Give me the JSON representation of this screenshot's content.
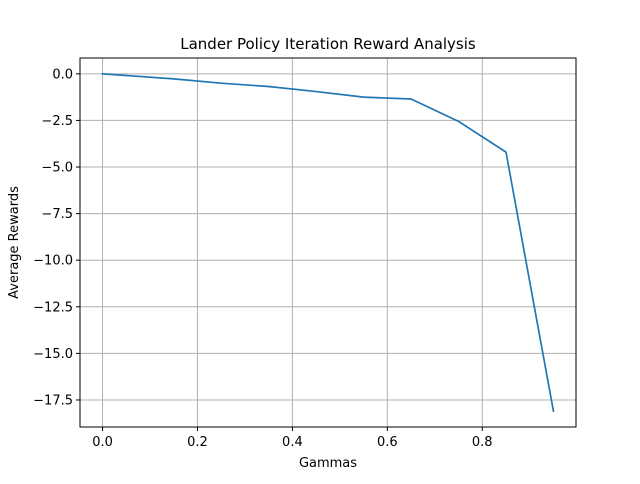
{
  "chart_data": {
    "type": "line",
    "title": "Lander Policy Iteration Reward Analysis",
    "xlabel": "Gammas",
    "ylabel": "Average Rewards",
    "xlim": [
      -0.0475,
      0.9975
    ],
    "ylim": [
      -18.95,
      0.85
    ],
    "xticks": [
      0.0,
      0.2,
      0.4,
      0.6,
      0.8
    ],
    "xtick_labels": [
      "0.0",
      "0.2",
      "0.4",
      "0.6",
      "0.8"
    ],
    "yticks": [
      0.0,
      -2.5,
      -5.0,
      -7.5,
      -10.0,
      -12.5,
      -15.0,
      -17.5
    ],
    "ytick_labels": [
      "0.0",
      "−2.5",
      "−5.0",
      "−7.5",
      "−10.0",
      "−12.5",
      "−15.0",
      "−17.5"
    ],
    "grid": true,
    "legend": "none",
    "series": [
      {
        "color": "#1f77b4",
        "x": [
          0.0,
          0.15,
          0.25,
          0.35,
          0.45,
          0.55,
          0.65,
          0.75,
          0.85,
          0.95
        ],
        "y": [
          0.0,
          -0.27,
          -0.5,
          -0.68,
          -0.95,
          -1.25,
          -1.35,
          -2.55,
          -4.2,
          -18.1
        ]
      }
    ]
  }
}
